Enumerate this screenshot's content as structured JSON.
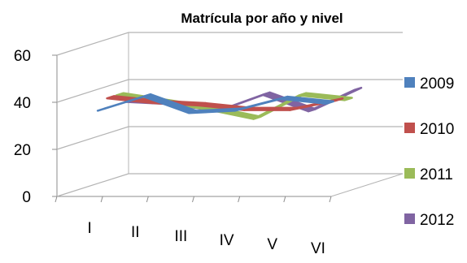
{
  "chart_data": {
    "type": "line",
    "style": "3d",
    "title": "Matrícula por año y nivel",
    "xlabel": "",
    "ylabel": "",
    "categories": [
      "I",
      "II",
      "III",
      "IV",
      "V",
      "VI"
    ],
    "yticks": [
      "0",
      "20",
      "40",
      "60"
    ],
    "ylim": [
      0,
      60
    ],
    "grid": true,
    "legend_position": "right",
    "series": [
      {
        "name": "2009",
        "color": "#4f81bd",
        "values": [
          34,
          40,
          33,
          34,
          39,
          37
        ]
      },
      {
        "name": "2010",
        "color": "#c0504d",
        "values": [
          38,
          36,
          35,
          33,
          33,
          37
        ]
      },
      {
        "name": "2011",
        "color": "#9bbb59",
        "values": [
          38,
          35,
          32,
          28,
          38,
          36
        ]
      },
      {
        "name": "2012",
        "color": "#8064a2",
        "values": [
          34,
          33,
          30,
          37,
          30,
          39
        ]
      }
    ]
  }
}
